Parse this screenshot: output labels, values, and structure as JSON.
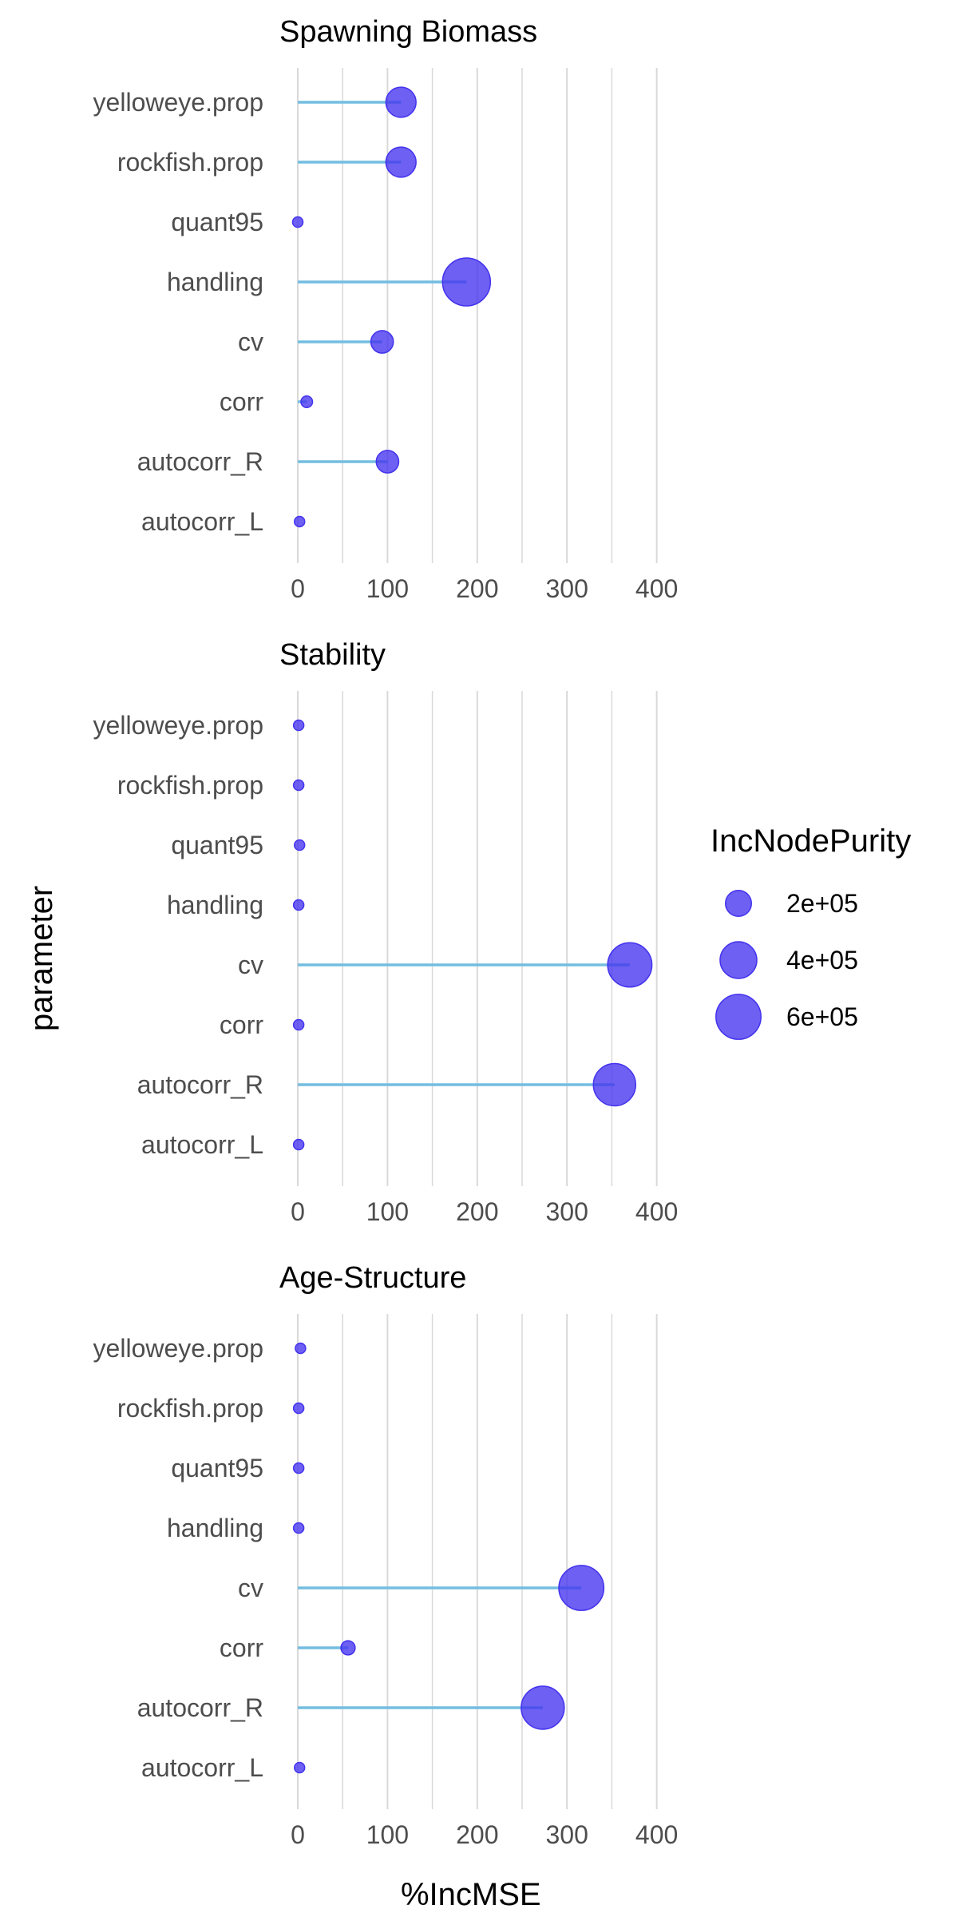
{
  "chart_data": {
    "type": "lollipop",
    "xlabel": "%IncMSE",
    "ylabel": "parameter",
    "xlim": [
      -10,
      440
    ],
    "xticks": [
      0,
      100,
      200,
      300,
      400
    ],
    "grid": "vertical",
    "categories": [
      "yelloweye.prop",
      "rockfish.prop",
      "quant95",
      "handling",
      "cv",
      "corr",
      "autocorr_R",
      "autocorr_L"
    ],
    "size_legend": {
      "title": "IncNodePurity",
      "labels": [
        "2e+05",
        "4e+05",
        "6e+05"
      ],
      "values": [
        200000,
        400000,
        600000
      ],
      "placement": "right"
    },
    "colors": {
      "point": "#4433ee",
      "stem": "#74bde1",
      "grid": "#d9d9d9"
    },
    "panels": [
      {
        "title": "Spawning Biomass",
        "x": [
          115,
          115,
          0,
          188,
          94,
          10,
          100,
          2
        ],
        "size": [
          270000,
          270000,
          20000,
          680000,
          150000,
          40000,
          150000,
          30000
        ]
      },
      {
        "title": "Stability",
        "x": [
          1,
          1,
          2,
          1,
          370,
          1,
          353,
          1
        ],
        "size": [
          25000,
          20000,
          30000,
          30000,
          580000,
          25000,
          530000,
          30000
        ]
      },
      {
        "title": "Age-Structure",
        "x": [
          3,
          1,
          1,
          1,
          316,
          56,
          273,
          2
        ],
        "size": [
          25000,
          25000,
          30000,
          30000,
          600000,
          60000,
          550000,
          25000
        ]
      }
    ]
  }
}
